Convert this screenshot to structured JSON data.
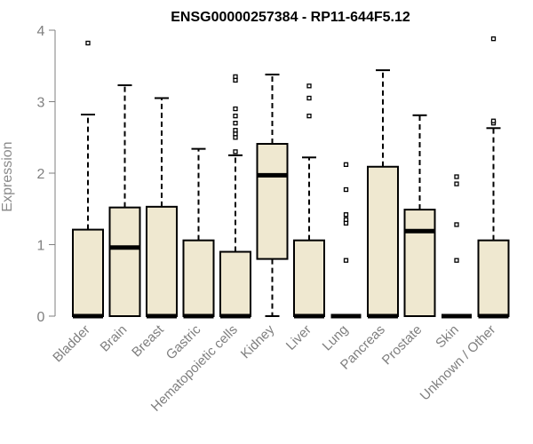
{
  "chart_data": {
    "type": "boxplot",
    "title": "ENSG00000257384 - RP11-644F5.12",
    "ylabel": "Expression",
    "xlabel": "",
    "ylim": [
      0,
      4
    ],
    "yticks": [
      "0",
      "1",
      "2",
      "3",
      "4"
    ],
    "box_fill": "#efe8d0",
    "stroke": "#000000",
    "categories": [
      "Bladder",
      "Brain",
      "Breast",
      "Gastric",
      "Hematopoietic cells",
      "Kidney",
      "Liver",
      "Lung",
      "Pancreas",
      "Prostate",
      "Skin",
      "Unknown / Other"
    ],
    "boxes": [
      {
        "min": 0,
        "q1": 0,
        "median": 0,
        "q3": 1.21,
        "max": 2.82,
        "outliers": [
          3.82
        ]
      },
      {
        "min": 0,
        "q1": 0,
        "median": 0.96,
        "q3": 1.52,
        "max": 3.23,
        "outliers": []
      },
      {
        "min": 0,
        "q1": 0,
        "median": 0,
        "q3": 1.53,
        "max": 3.05,
        "outliers": []
      },
      {
        "min": 0,
        "q1": 0,
        "median": 0,
        "q3": 1.06,
        "max": 2.34,
        "outliers": []
      },
      {
        "min": 0,
        "q1": 0,
        "median": 0,
        "q3": 0.9,
        "max": 2.25,
        "outliers": [
          2.3,
          2.5,
          2.55,
          2.6,
          2.7,
          2.8,
          2.9,
          3.3,
          3.35
        ]
      },
      {
        "min": 0,
        "q1": 0.8,
        "median": 1.97,
        "q3": 2.41,
        "max": 3.38,
        "outliers": []
      },
      {
        "min": 0,
        "q1": 0,
        "median": 0,
        "q3": 1.06,
        "max": 2.22,
        "outliers": [
          2.8,
          3.05,
          3.22
        ]
      },
      {
        "min": 0,
        "q1": 0,
        "median": 0,
        "q3": 0,
        "max": 0,
        "outliers": [
          0.78,
          1.3,
          1.35,
          1.42,
          1.77,
          2.12
        ]
      },
      {
        "min": 0,
        "q1": 0,
        "median": 0,
        "q3": 2.09,
        "max": 3.44,
        "outliers": []
      },
      {
        "min": 0,
        "q1": 0,
        "median": 1.19,
        "q3": 1.49,
        "max": 2.81,
        "outliers": []
      },
      {
        "min": 0,
        "q1": 0,
        "median": 0,
        "q3": 0,
        "max": 0,
        "outliers": [
          0.78,
          1.28,
          1.85,
          1.95
        ]
      },
      {
        "min": 0,
        "q1": 0,
        "median": 0,
        "q3": 1.06,
        "max": 2.63,
        "outliers": [
          2.7,
          2.73,
          3.88
        ]
      }
    ]
  }
}
